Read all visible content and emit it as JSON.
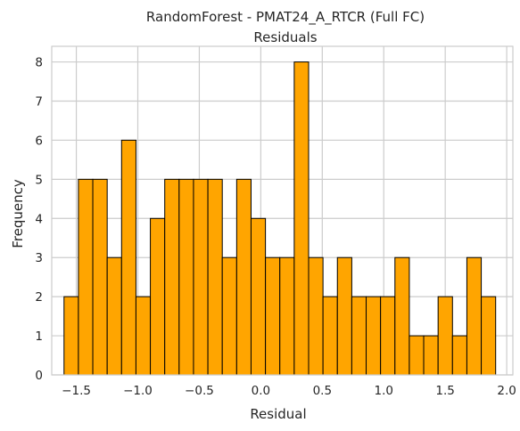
{
  "chart_data": {
    "type": "bar",
    "title": "RandomForest - PMAT24_A_RTCR (Full FC)",
    "subtitle": "Residuals",
    "xlabel": "Residual",
    "ylabel": "Frequency",
    "xlim": [
      -1.7,
      2.05
    ],
    "ylim": [
      0,
      8.4
    ],
    "bin_edges": [
      -1.6,
      -1.483,
      -1.366,
      -1.249,
      -1.132,
      -1.015,
      -0.898,
      -0.781,
      -0.664,
      -0.547,
      -0.43,
      -0.313,
      -0.196,
      -0.079,
      0.038,
      0.155,
      0.272,
      0.389,
      0.506,
      0.623,
      0.74,
      0.857,
      0.974,
      1.091,
      1.208,
      1.325,
      1.442,
      1.559,
      1.676,
      1.793,
      1.91
    ],
    "values": [
      2,
      5,
      5,
      3,
      6,
      2,
      4,
      5,
      5,
      5,
      5,
      3,
      5,
      4,
      3,
      3,
      8,
      3,
      2,
      3,
      2,
      2,
      2,
      3,
      1,
      1,
      2,
      1,
      3,
      2
    ],
    "x_ticks": [
      -1.5,
      -1.0,
      -0.5,
      0.0,
      0.5,
      1.0,
      1.5,
      2.0
    ],
    "x_tick_labels": [
      "−1.5",
      "−1.0",
      "−0.5",
      "0.0",
      "0.5",
      "1.0",
      "1.5",
      "2.0"
    ],
    "y_ticks": [
      0,
      1,
      2,
      3,
      4,
      5,
      6,
      7,
      8
    ],
    "y_tick_labels": [
      "0",
      "1",
      "2",
      "3",
      "4",
      "5",
      "6",
      "7",
      "8"
    ],
    "grid": true,
    "colors": {
      "bar_fill": "#ffa500",
      "bar_edge": "#000000",
      "grid": "#cccccc",
      "axes_edge": "#cccccc"
    }
  }
}
